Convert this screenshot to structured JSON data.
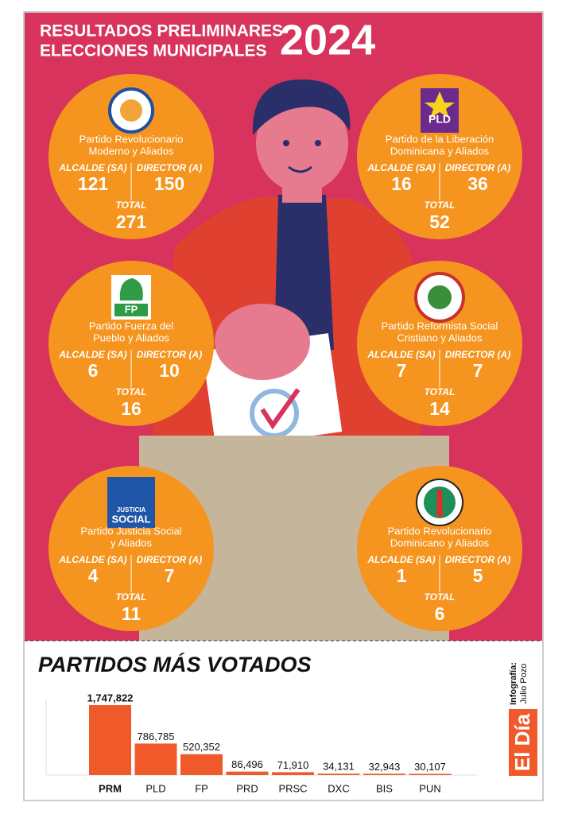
{
  "header": {
    "line1": "RESULTADOS PRELIMINARES",
    "line2": "ELECCIONES MUNICIPALES",
    "year": "2024"
  },
  "labels": {
    "alcalde": "ALCALDE (SA)",
    "director": "DIRECTOR (A)",
    "total": "TOTAL"
  },
  "parties": [
    {
      "name": [
        "Partido Revolucionario",
        "Moderno y Aliados"
      ],
      "alcalde": 121,
      "director": 150,
      "total": 271
    },
    {
      "name": [
        "Partido de la Liberación",
        "Dominicana y Aliados"
      ],
      "logo_lines": [
        "PLD"
      ],
      "alcalde": 16,
      "director": 36,
      "total": 52
    },
    {
      "name": [
        "Partido Fuerza del",
        "Pueblo y Aliados"
      ],
      "logo_lines": [
        "FP"
      ],
      "alcalde": 6,
      "director": 10,
      "total": 16
    },
    {
      "name": [
        "Partido Reformista Social",
        "Cristiano y Aliados"
      ],
      "alcalde": 7,
      "director": 7,
      "total": 14
    },
    {
      "name": [
        "Partido Justicia Social",
        "y Aliados"
      ],
      "logo_lines": [
        "JUSTICIA",
        "SOCIAL"
      ],
      "alcalde": 4,
      "director": 7,
      "total": 11
    },
    {
      "name": [
        "Partido Revolucionario",
        "Dominicano y Aliados"
      ],
      "alcalde": 1,
      "director": 5,
      "total": 6
    }
  ],
  "chart_data": {
    "type": "bar",
    "title": "PARTIDOS MÁS VOTADOS",
    "categories": [
      "PRM",
      "PLD",
      "FP",
      "PRD",
      "PRSC",
      "DXC",
      "BIS",
      "PUN"
    ],
    "values": [
      1747822,
      786785,
      520352,
      86496,
      71910,
      34131,
      32943,
      30107
    ],
    "value_labels": [
      "1,747,822",
      "786,785",
      "520,352",
      "86,496",
      "71,910",
      "34,131",
      "32,943",
      "30,107"
    ],
    "color": "#f05a2a"
  },
  "credit": {
    "label": "Infografía:",
    "author": "Julio Pozo"
  },
  "brand": "El Día"
}
